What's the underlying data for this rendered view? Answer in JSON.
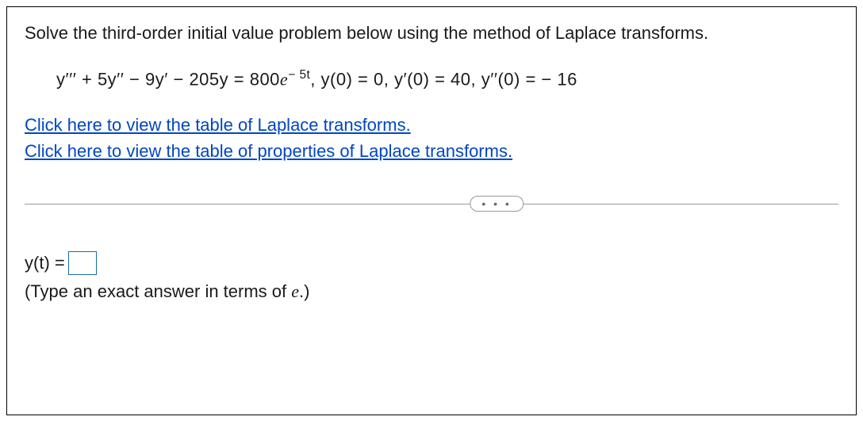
{
  "problem": {
    "prompt": "Solve the third-order initial value problem below using the method of Laplace transforms.",
    "equation_html": "y′′′ + 5y′′ − 9y′ − 205y = 800e<sup style='font-size:0.75em'>− 5t</sup>, y(0) = 0, y′(0) = 40, y′′(0) = − 16",
    "link1": "Click here to view the table of Laplace transforms.",
    "link2": "Click here to view the table of properties of Laplace transforms."
  },
  "divider": {
    "dots": "• • •"
  },
  "answer": {
    "prefix": "y(t) = ",
    "instruction_pre": "(Type an exact answer in terms of ",
    "instruction_var": "e",
    "instruction_post": ".)"
  },
  "styling": {
    "text_color": "#1a1a1a",
    "link_color": "#0046c4",
    "border_color": "#000000",
    "input_border_color": "#1a6b9c",
    "divider_color": "#999999",
    "background_color": "#ffffff",
    "font_size_main": 22,
    "font_family": "Arial"
  }
}
